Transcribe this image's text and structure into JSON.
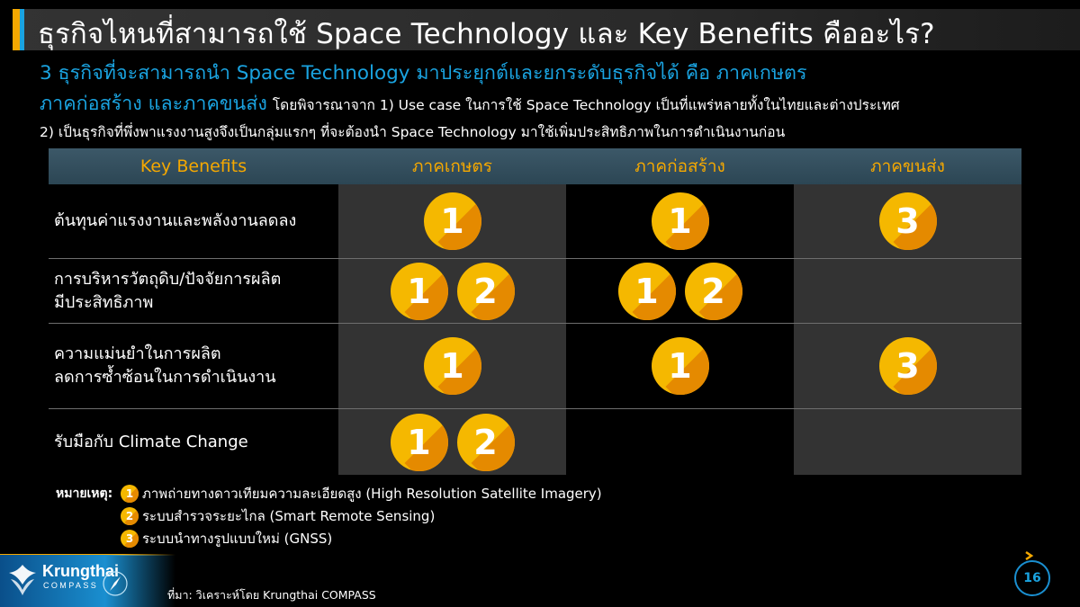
{
  "header": {
    "title": "ธุรกิจไหนที่สามารถใช้ Space Technology และ Key Benefits คืออะไร?"
  },
  "subtitle": {
    "line1": "3 ธุรกิจที่จะสามารถนำ Space Technology มาประยุกต์และยกระดับธุรกิจได้ คือ ภาคเกษตร",
    "line2_highlight": "ภาคก่อสร้าง และภาคขนส่ง",
    "line2_rest": "โดยพิจารณาจาก 1) Use case ในการใช้ Space Technology เป็นที่แพร่หลายทั้งในไทยและต่างประเทศ",
    "line3": "2) เป็นธุรกิจที่พึ่งพาแรงงานสูงจึงเป็นกลุ่มแรกๆ ที่จะต้องนำ Space Technology มาใช้เพิ่มประสิทธิภาพในการดำเนินงานก่อน"
  },
  "table": {
    "headers": [
      "Key Benefits",
      "ภาคเกษตร",
      "ภาคก่อสร้าง",
      "ภาคขนส่ง"
    ],
    "rows": [
      {
        "label": [
          "ต้นทุนค่าแรงงานและพลังงานลดลง"
        ],
        "agri": [
          "1"
        ],
        "construction": [
          "1"
        ],
        "transport": [
          "3"
        ]
      },
      {
        "label": [
          "การบริหารวัตถุดิบ/ปัจจัยการผลิต",
          "มีประสิทธิภาพ"
        ],
        "agri": [
          "1",
          "2"
        ],
        "construction": [
          "1",
          "2"
        ],
        "transport": []
      },
      {
        "label": [
          "ความแม่นยำในการผลิต",
          "ลดการซ้ำซ้อนในการดำเนินงาน"
        ],
        "agri": [
          "1"
        ],
        "construction": [
          "1"
        ],
        "transport": [
          "3"
        ]
      },
      {
        "label": [
          "รับมือกับ Climate Change"
        ],
        "agri": [
          "1",
          "2"
        ],
        "construction": [],
        "transport": []
      }
    ]
  },
  "legend": {
    "heading": "หมายเหตุ:",
    "items": [
      {
        "number": "1",
        "text": "ภาพถ่ายทางดาวเทียมความละเอียดสูง (High Resolution Satellite Imagery)"
      },
      {
        "number": "2",
        "text": "ระบบสำรวจระยะไกล (Smart Remote Sensing)"
      },
      {
        "number": "3",
        "text": "ระบบนำทางรูปแบบใหม่ (GNSS)"
      }
    ]
  },
  "footer": {
    "logo_name": "Krungthai",
    "logo_sub": "COMPASS",
    "source": "ที่มา: วิเคราะห์โดย Krungthai COMPASS",
    "page_number": "16"
  },
  "colors": {
    "accent_blue": "#1aa3e0",
    "accent_gold": "#f5a800",
    "badge_light": "#f5b800",
    "badge_dark": "#e58a00"
  }
}
